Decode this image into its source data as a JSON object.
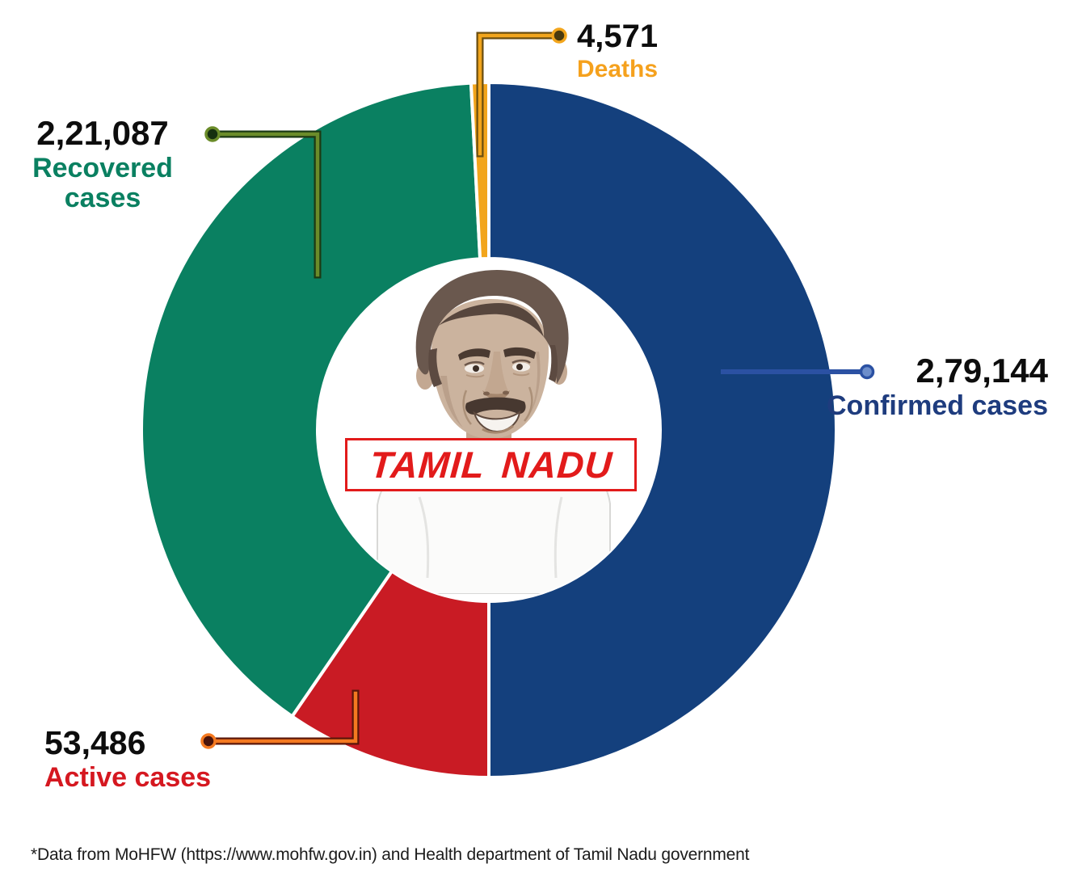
{
  "chart_data": {
    "type": "pie",
    "subtype": "donut",
    "title": "",
    "center_label": "TAMIL NADU",
    "direction": "clockwise",
    "start_angle_deg": 0,
    "total": 558288,
    "gap_color": "#ffffff",
    "number_color": "#0d0d0d",
    "slices": [
      {
        "name": "Confirmed cases",
        "value": 279144,
        "display": "2,79,144",
        "color": "#14407d",
        "label_color": "#1e3c7e",
        "leader": {
          "line": "#2b51a3",
          "outline": null,
          "dot": "#6d8ecb"
        }
      },
      {
        "name": "Active cases",
        "value": 53486,
        "display": "53,486",
        "color": "#c91b24",
        "label_color": "#d51820",
        "leader": {
          "line": "#f47920",
          "outline": "#5c170a",
          "dot": "#4a130a"
        }
      },
      {
        "name": "Recovered cases",
        "value": 221087,
        "display": "2,21,087",
        "color": "#0a8061",
        "label_color": "#0a8061",
        "leader": {
          "line": "#6b8c2a",
          "outline": "#1c3a14",
          "dot": "#16300f"
        }
      },
      {
        "name": "Deaths",
        "value": 4571,
        "display": "4,571",
        "color": "#f2a51c",
        "label_color": "#f5a11d",
        "leader": {
          "line": "#f2a51c",
          "outline": "#6b4e10",
          "dot": "#4a3a0e"
        }
      }
    ]
  },
  "center": {
    "banner": "TAMIL NADU",
    "banner_color": "#e21b1b"
  },
  "footer": {
    "text": "*Data from MoHFW (https://www.mohfw.gov.in) and Health department of Tamil Nadu government"
  }
}
